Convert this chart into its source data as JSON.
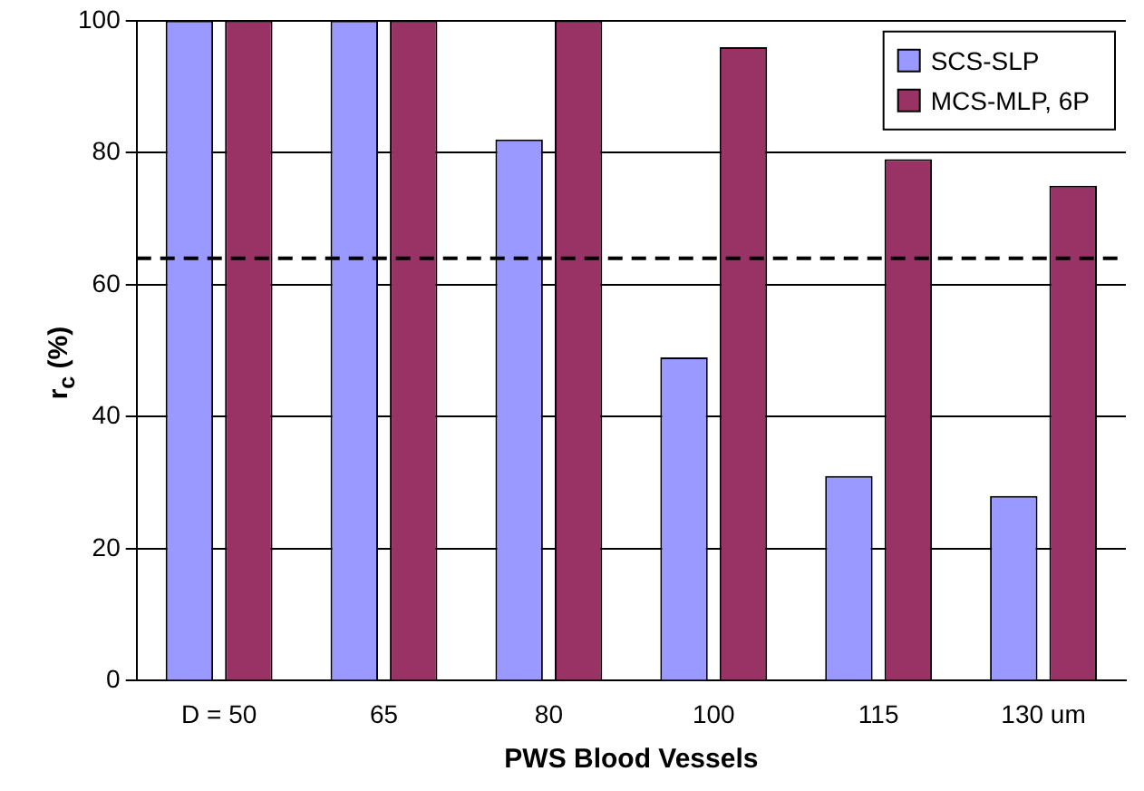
{
  "chart_data": {
    "type": "bar",
    "xlabel": "PWS Blood Vessels",
    "ylabel": "r$_{c}$ (%)",
    "categories": [
      "D = 50",
      "65",
      "80",
      "100",
      "115",
      "130 um"
    ],
    "series": [
      {
        "name": "SCS-SLP",
        "color": "#9999ff",
        "values": [
          100,
          100,
          82,
          49,
          31,
          28
        ]
      },
      {
        "name": "MCS-MLP, 6P",
        "color": "#993366",
        "values": [
          100,
          100,
          100,
          96,
          79,
          75
        ]
      }
    ],
    "ylim": [
      0,
      100
    ],
    "yticks": [
      0,
      20,
      40,
      60,
      80,
      100
    ],
    "grid": "y",
    "legend": "top right",
    "ref_lines": [
      {
        "axis": "y",
        "value": 64,
        "color": "#000000",
        "line_style": "dashed"
      }
    ]
  }
}
